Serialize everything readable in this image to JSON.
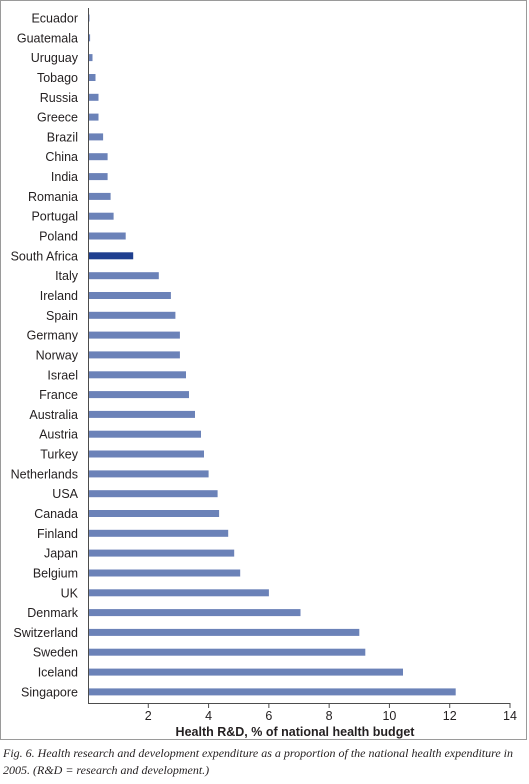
{
  "chart_data": {
    "type": "bar",
    "orientation": "horizontal",
    "categories": [
      "Ecuador",
      "Guatemala",
      "Uruguay",
      "Tobago",
      "Russia",
      "Greece",
      "Brazil",
      "China",
      "India",
      "Romania",
      "Portugal",
      "Poland",
      "South Africa",
      "Italy",
      "Ireland",
      "Spain",
      "Germany",
      "Norway",
      "Israel",
      "France",
      "Australia",
      "Austria",
      "Turkey",
      "Netherlands",
      "USA",
      "Canada",
      "Finland",
      "Japan",
      "Belgium",
      "UK",
      "Denmark",
      "Switzerland",
      "Sweden",
      "Iceland",
      "Singapore"
    ],
    "values": [
      0.05,
      0.07,
      0.15,
      0.25,
      0.35,
      0.35,
      0.5,
      0.65,
      0.65,
      0.75,
      0.85,
      1.25,
      1.5,
      2.35,
      2.75,
      2.9,
      3.05,
      3.05,
      3.25,
      3.35,
      3.55,
      3.75,
      3.85,
      4.0,
      4.3,
      4.35,
      4.65,
      4.85,
      5.05,
      6.0,
      7.05,
      9.0,
      9.2,
      10.45,
      12.2
    ],
    "highlight_category": "South Africa",
    "bar_color": "#6b82b8",
    "highlight_color": "#1f3f8f",
    "xlabel": "Health R&D, % of national health budget",
    "ylabel": "",
    "xlim": [
      0,
      14
    ],
    "xticks": [
      "2",
      "4",
      "6",
      "8",
      "10",
      "12",
      "14"
    ],
    "grid": false
  },
  "caption": "Fig. 6. Health research and development expenditure as a proportion of the national health expenditure in 2005. (R&D = research and development.)"
}
